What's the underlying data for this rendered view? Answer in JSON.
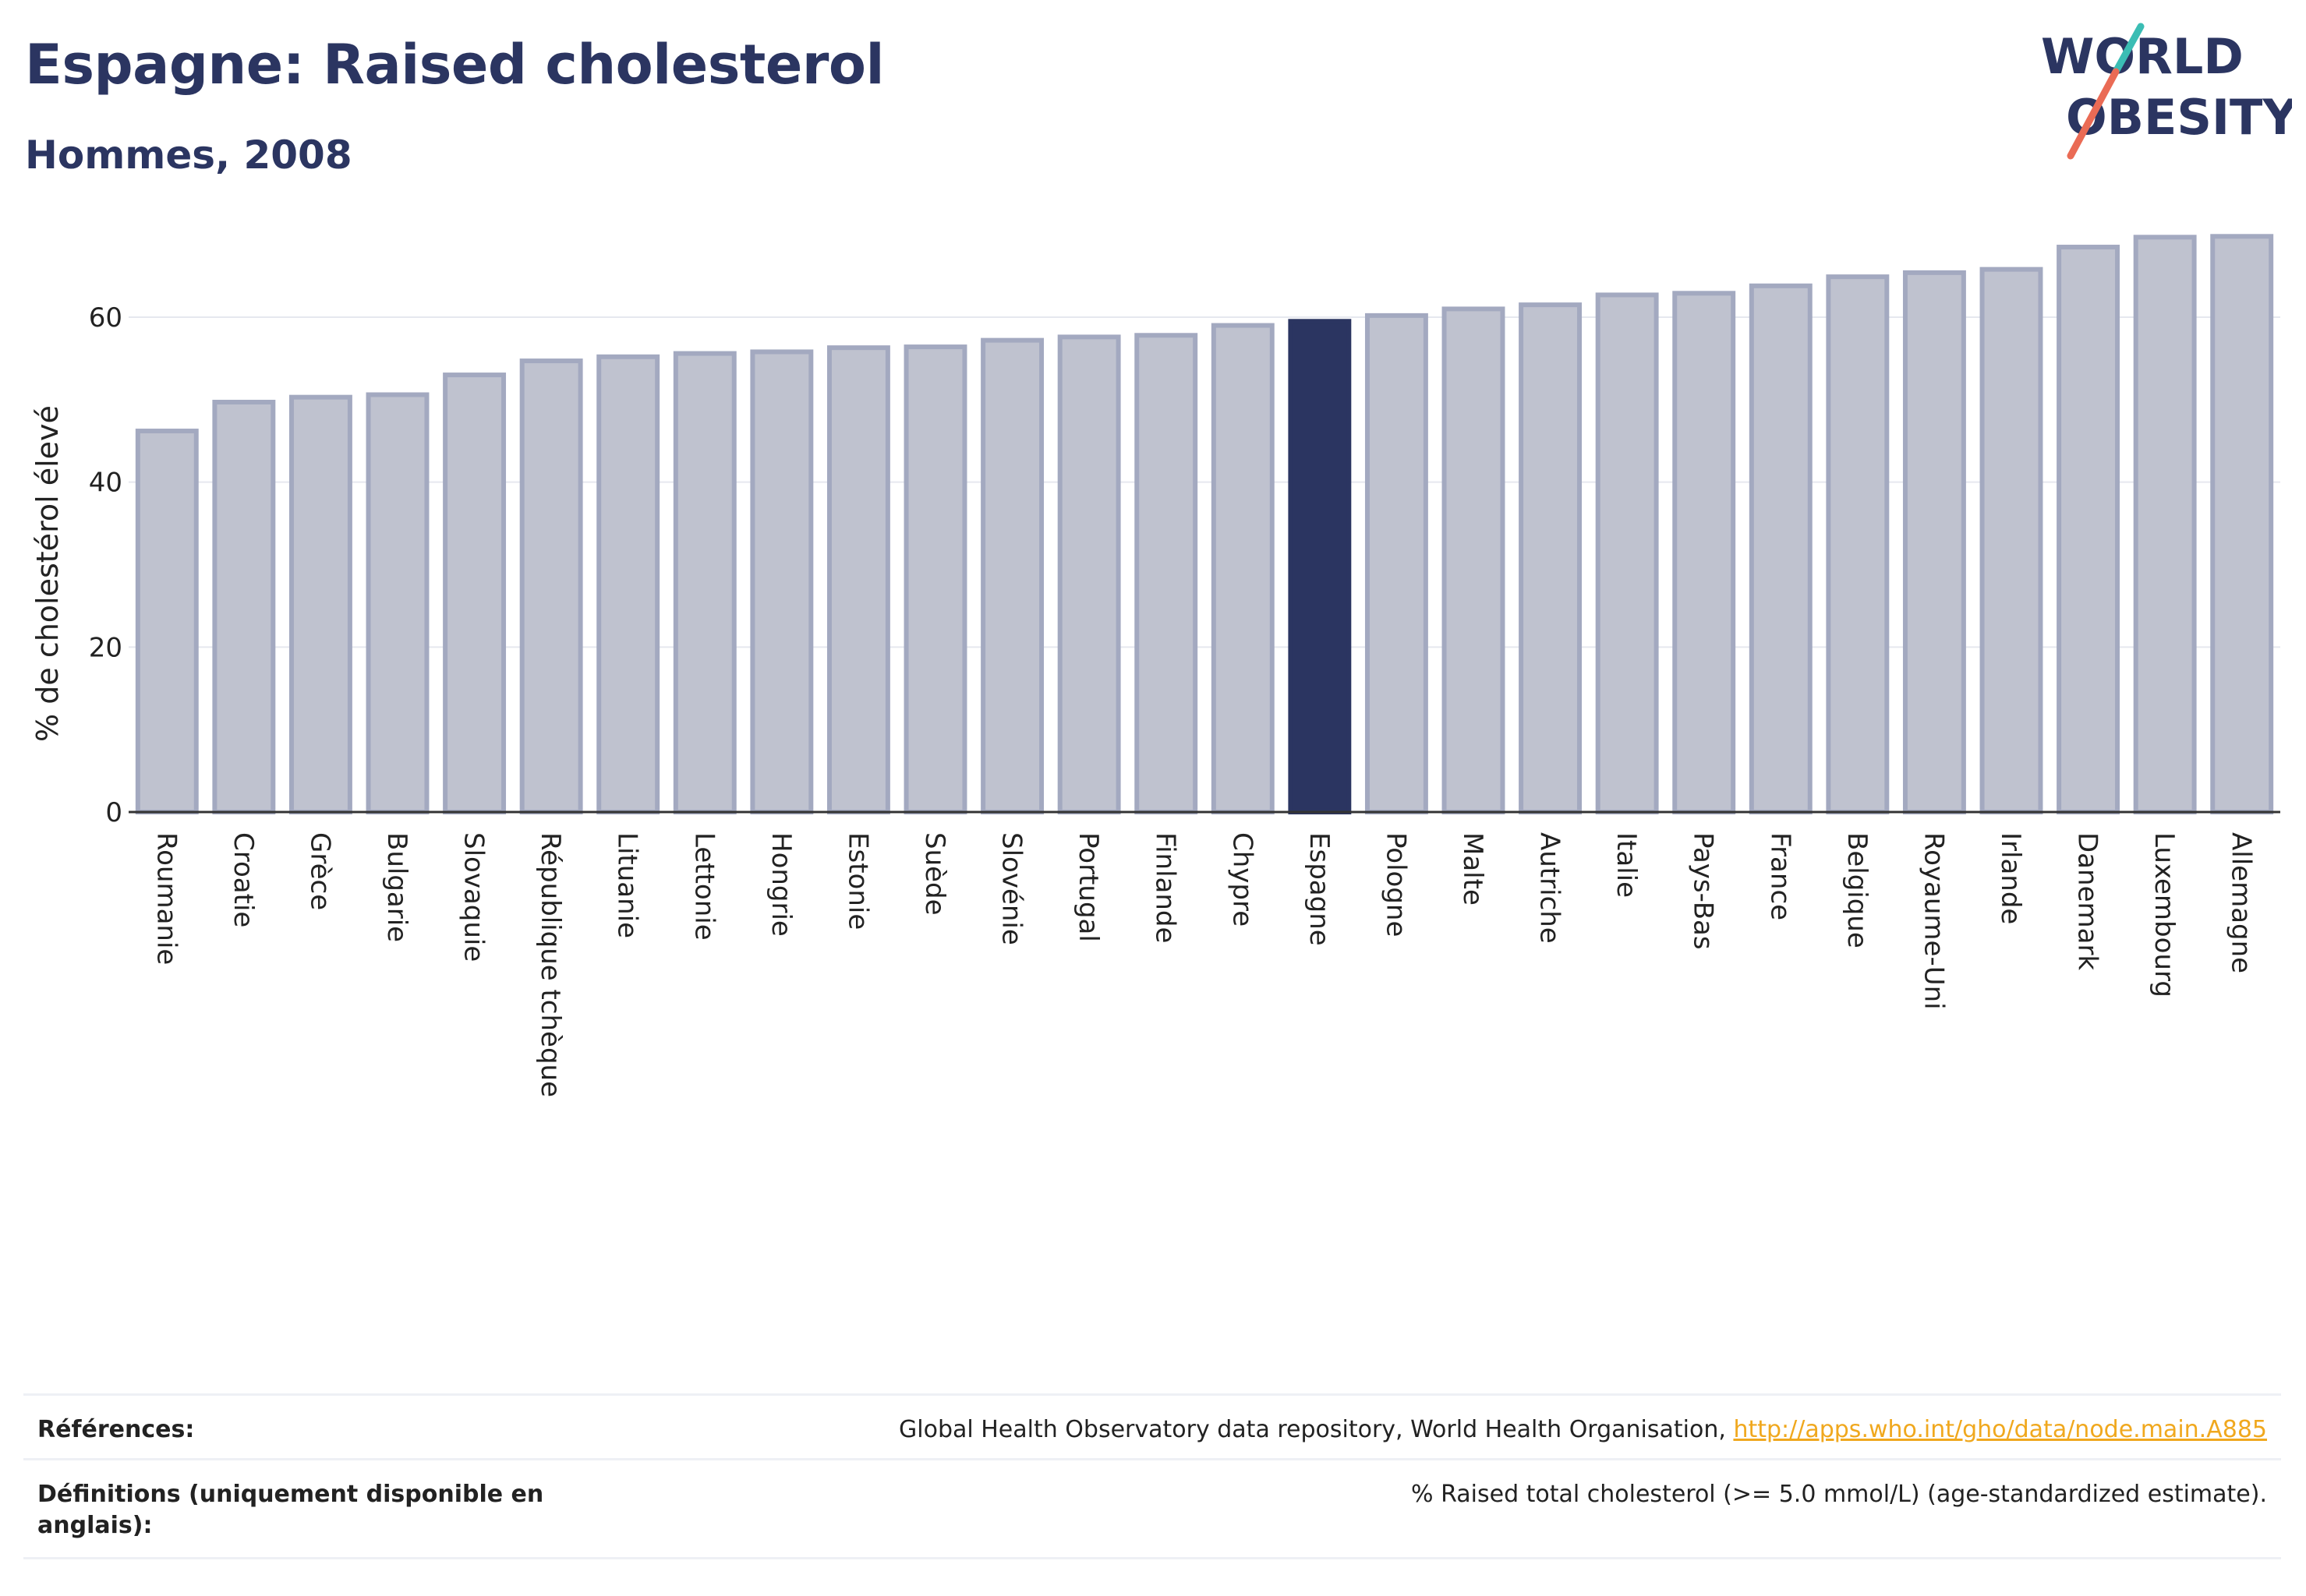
{
  "header": {
    "title": "Espagne: Raised cholesterol",
    "subtitle": "Hommes, 2008"
  },
  "logo": {
    "line1": "WORLD",
    "line2": "OBESITY"
  },
  "chart_data": {
    "type": "bar",
    "title": "Espagne: Raised cholesterol",
    "subtitle": "Hommes, 2008",
    "ylabel": "% de cholestérol élevé",
    "xlabel": "",
    "ylim": [
      0,
      72
    ],
    "yticks": [
      0,
      20,
      40,
      60
    ],
    "grid": true,
    "highlight": "Espagne",
    "categories": [
      "Roumanie",
      "Croatie",
      "Grèce",
      "Bulgarie",
      "Slovaquie",
      "République tchèque",
      "Lituanie",
      "Lettonie",
      "Hongrie",
      "Estonie",
      "Suède",
      "Slovénie",
      "Portugal",
      "Finlande",
      "Chypre",
      "Espagne",
      "Pologne",
      "Malte",
      "Autriche",
      "Italie",
      "Pays-Bas",
      "France",
      "Belgique",
      "Royaume-Uni",
      "Irlande",
      "Danemark",
      "Luxembourg",
      "Allemagne"
    ],
    "values": [
      46.2,
      49.7,
      50.3,
      50.6,
      53.0,
      54.7,
      55.2,
      55.6,
      55.8,
      56.3,
      56.4,
      57.2,
      57.6,
      57.8,
      59.0,
      59.5,
      60.2,
      61.0,
      61.5,
      62.7,
      62.9,
      63.8,
      64.9,
      65.4,
      65.8,
      68.5,
      69.7,
      69.8
    ],
    "colors": {
      "highlight": "#2b3561",
      "bar_fill": "#bfc2cf",
      "bar_stroke": "#a3a9c0"
    }
  },
  "footer": {
    "references_label": "Références:",
    "references_text": "Global Health Observatory data repository, World Health Organisation, ",
    "references_link": "http://apps.who.int/gho/data/node.main.A885",
    "definitions_label": "Définitions (uniquement disponible en anglais):",
    "definitions_text": "% Raised total cholesterol (>= 5.0 mmol/L) (age-standardized estimate)."
  }
}
